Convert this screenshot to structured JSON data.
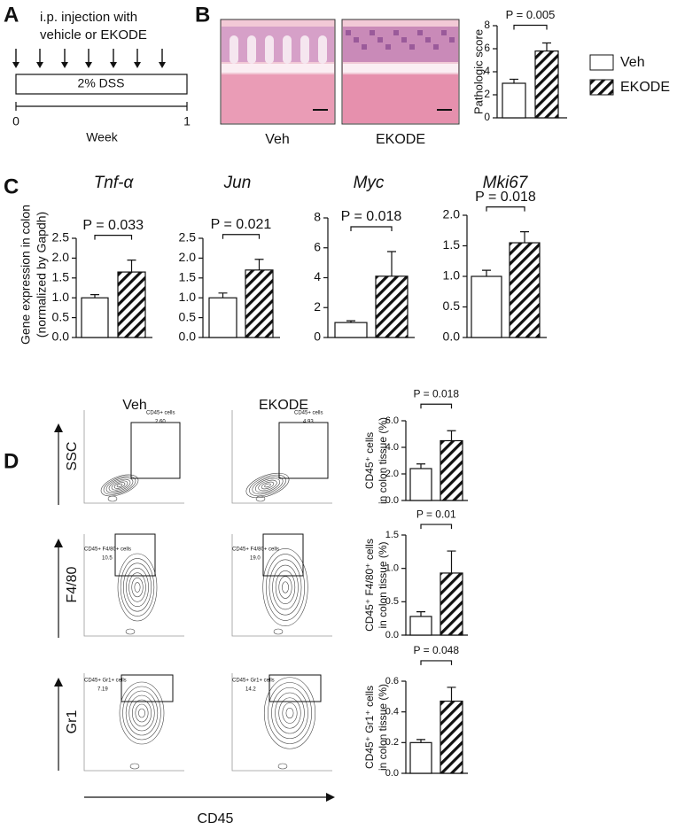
{
  "panel_labels": [
    "A",
    "B",
    "C",
    "D"
  ],
  "schematic": {
    "injection_text": [
      "i.p. injection with",
      "vehicle or EKODE"
    ],
    "treatment": "2% DSS",
    "axis_ticks": [
      "0",
      "1"
    ],
    "axis_label": "Week"
  },
  "histology": {
    "labels": [
      "Veh",
      "EKODE"
    ]
  },
  "legend": [
    {
      "label": "Veh",
      "fill": "open"
    },
    {
      "label": "EKODE",
      "fill": "hatched"
    }
  ],
  "gene_expression_ylabel": [
    "Gene expression in colon",
    "(normalized by Gapdh)"
  ],
  "flow": {
    "columns": [
      "Veh",
      "EKODE"
    ],
    "rows": [
      {
        "label": "SSC",
        "gate_label": "CD45+ cells",
        "percentages": [
          "2.60",
          "4.93"
        ]
      },
      {
        "label": "F4/80",
        "gate_label": "CD45+ F4/80+ cells",
        "percentages": [
          "10.5",
          "19.0"
        ]
      },
      {
        "label": "Gr1",
        "gate_label": "CD45+ Gr1+ cells",
        "percentages": [
          "7.19",
          "14.2"
        ]
      }
    ],
    "x_label": "CD45"
  },
  "chart_data": [
    {
      "type": "bar",
      "ylabel": "Pathologic score",
      "values": [
        3.0,
        5.8
      ],
      "errors": [
        0.35,
        0.7
      ],
      "annotation": "P = 0.005",
      "ylim": [
        0,
        8
      ],
      "yticks": [
        0,
        2,
        4,
        6,
        8
      ]
    },
    {
      "type": "bar",
      "title": "Tnf-α",
      "values": [
        1.0,
        1.65
      ],
      "errors": [
        0.08,
        0.3
      ],
      "annotation": "P = 0.033",
      "ylim": [
        0,
        2.5
      ],
      "yticks": [
        {
          "value": 0,
          "label": "0.0"
        },
        {
          "value": 0.5,
          "label": "0.5"
        },
        {
          "value": 1,
          "label": "1.0"
        },
        {
          "value": 1.5,
          "label": "1.5"
        },
        {
          "value": 2,
          "label": "2.0"
        },
        {
          "value": 2.5,
          "label": "2.5"
        }
      ]
    },
    {
      "type": "bar",
      "title": "Jun",
      "values": [
        1.0,
        1.7
      ],
      "errors": [
        0.12,
        0.27
      ],
      "annotation": "P = 0.021",
      "ylim": [
        0,
        2.5
      ],
      "yticks": [
        {
          "value": 0,
          "label": "0.0"
        },
        {
          "value": 0.5,
          "label": "0.5"
        },
        {
          "value": 1,
          "label": "1.0"
        },
        {
          "value": 1.5,
          "label": "1.5"
        },
        {
          "value": 2,
          "label": "2.0"
        },
        {
          "value": 2.5,
          "label": "2.5"
        }
      ]
    },
    {
      "type": "bar",
      "title": "Myc",
      "values": [
        1.0,
        4.1
      ],
      "errors": [
        0.12,
        1.65
      ],
      "annotation": "P = 0.018",
      "ylim": [
        0,
        8
      ],
      "yticks": [
        0,
        2,
        4,
        6,
        8
      ]
    },
    {
      "type": "bar",
      "title": "Mki67",
      "values": [
        1.0,
        1.55
      ],
      "errors": [
        0.1,
        0.18
      ],
      "annotation": "P = 0.018",
      "ylim": [
        0,
        2
      ],
      "yticks": [
        {
          "value": 0,
          "label": "0.0"
        },
        {
          "value": 0.5,
          "label": "0.5"
        },
        {
          "value": 1,
          "label": "1.0"
        },
        {
          "value": 1.5,
          "label": "1.5"
        },
        {
          "value": 2,
          "label": "2.0"
        }
      ]
    },
    {
      "type": "bar",
      "ylabel": [
        "CD45⁺ cells",
        "in colon tissue (%)"
      ],
      "values": [
        2.4,
        4.5
      ],
      "errors": [
        0.35,
        0.75
      ],
      "annotation": "P = 0.018",
      "ylim": [
        0,
        6
      ],
      "yticks": [
        {
          "value": 0,
          "label": "0.0"
        },
        {
          "value": 2,
          "label": "2.0"
        },
        {
          "value": 4,
          "label": "4.0"
        },
        {
          "value": 6,
          "label": "6.0"
        }
      ]
    },
    {
      "type": "bar",
      "ylabel": [
        "CD45⁺ F4/80⁺ cells",
        "in colon tissue (%)"
      ],
      "values": [
        0.28,
        0.93
      ],
      "errors": [
        0.07,
        0.33
      ],
      "annotation": "P = 0.01",
      "ylim": [
        0,
        1.5
      ],
      "yticks": [
        {
          "value": 0,
          "label": "0.0"
        },
        {
          "value": 0.5,
          "label": "0.5"
        },
        {
          "value": 1,
          "label": "1.0"
        },
        {
          "value": 1.5,
          "label": "1.5"
        }
      ]
    },
    {
      "type": "bar",
      "ylabel": [
        "CD45⁺ Gr1⁺ cells",
        "in colon tissue (%)"
      ],
      "values": [
        0.2,
        0.47
      ],
      "errors": [
        0.02,
        0.09
      ],
      "annotation": "P = 0.048",
      "ylim": [
        0,
        0.6
      ],
      "yticks": [
        {
          "value": 0,
          "label": "0.0"
        },
        {
          "value": 0.2,
          "label": "0.2"
        },
        {
          "value": 0.4,
          "label": "0.4"
        },
        {
          "value": 0.6,
          "label": "0.6"
        }
      ]
    }
  ]
}
